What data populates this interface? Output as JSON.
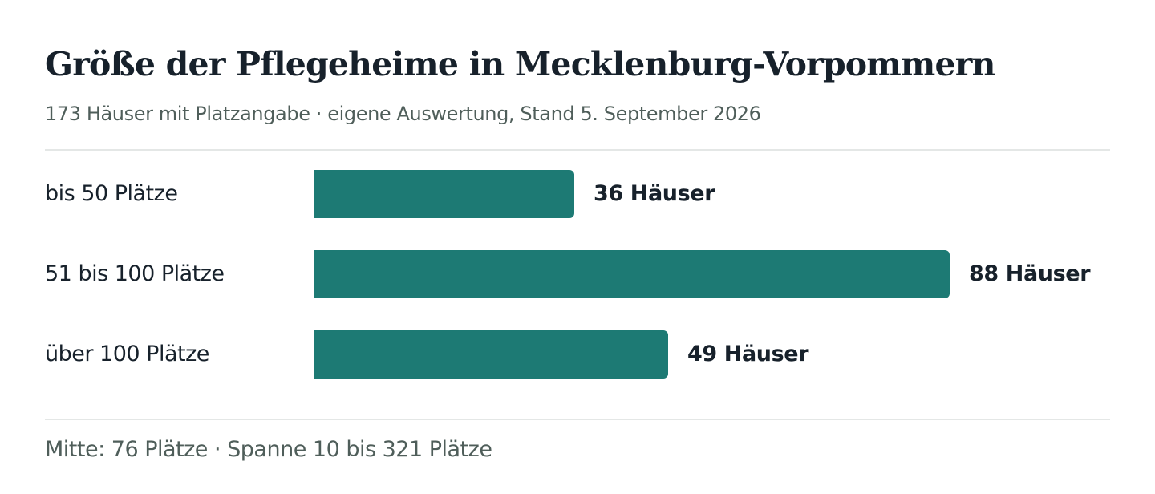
{
  "title": "Größe der Pflegeheime in Mecklenburg-Vorpommern",
  "subtitle": "173 Häuser mit Platzangabe · eigene Auswertung, Stand 5. September 2026",
  "footer": "Mitte: 76 Plätze · Spanne 10 bis 321 Plätze",
  "colors": {
    "bar": "#1d7a74",
    "text": "#17212b",
    "muted": "#4f5e5a",
    "rule": "#e4e7e6"
  },
  "chart_data": {
    "type": "bar",
    "orientation": "horizontal",
    "title": "Größe der Pflegeheime in Mecklenburg-Vorpommern",
    "subtitle": "173 Häuser mit Platzangabe · eigene Auswertung, Stand 5. September 2026",
    "categories": [
      "bis 50 Plätze",
      "51 bis 100 Plätze",
      "über 100 Plätze"
    ],
    "values": [
      36,
      88,
      49
    ],
    "value_labels": [
      "36 Häuser",
      "88 Häuser",
      "49 Häuser"
    ],
    "unit": "Häuser",
    "xlim": [
      0,
      88
    ],
    "grid": false,
    "legend": "none"
  }
}
